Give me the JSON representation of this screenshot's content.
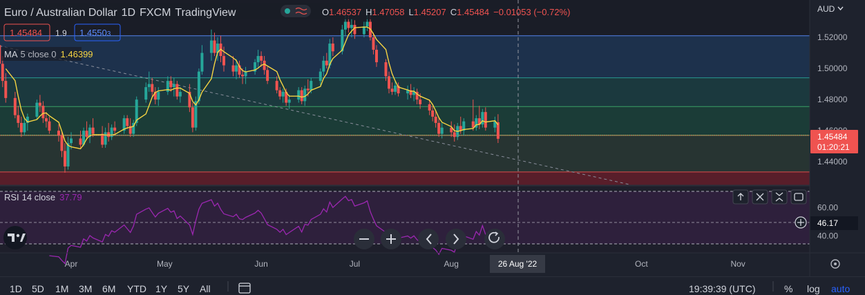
{
  "header": {
    "symbol": "Euro / Australian Dollar",
    "interval": "1D",
    "exchange": "FXCM",
    "brand": "TradingView",
    "ohlc": {
      "o_label": "O",
      "o": "1.46537",
      "h_label": "H",
      "h": "1.47058",
      "l_label": "L",
      "l": "1.45207",
      "c_label": "C",
      "c": "1.45484",
      "change": "−0.01053 (−0.72%)"
    },
    "sell_price": "1.45484",
    "spread": "1.9",
    "buy_price": "1.4550",
    "buy_price_small": "3"
  },
  "ma": {
    "label": "MA",
    "params": "5 close 0",
    "value": "1.46399",
    "color": "#f5d442"
  },
  "rsi": {
    "label": "RSI",
    "params": "14 close",
    "value": "37.79",
    "color": "#9b27b0",
    "crosshair_value": "46.17"
  },
  "price_axis": {
    "currency": "AUD",
    "ticks": [
      "1.52000",
      "1.50000",
      "1.48000",
      "1.46000",
      "1.44000"
    ],
    "last_price": "1.45484",
    "countdown": "01:20:21"
  },
  "rsi_axis": {
    "ticks": [
      "60.00",
      "40.00"
    ]
  },
  "time_axis": {
    "ticks": [
      "Apr",
      "May",
      "Jun",
      "Jul",
      "Aug",
      "Oct",
      "Nov"
    ],
    "crosshair_date": "26 Aug '22"
  },
  "toolbar": {
    "ranges": [
      "1D",
      "5D",
      "1M",
      "3M",
      "6M",
      "YTD",
      "1Y",
      "5Y",
      "All"
    ],
    "clock": "19:39:39 (UTC)",
    "percent": "%",
    "log": "log",
    "auto": "auto"
  },
  "colors": {
    "up": "#26a69a",
    "down": "#ef5350",
    "background": "#1e222d",
    "accent": "#2962ff"
  },
  "icons": {
    "chart_controls": [
      "minus-icon",
      "plus-icon",
      "chevron-left-icon",
      "chevron-right-icon",
      "reset-icon"
    ],
    "pane_controls": [
      "arrow-up-icon",
      "close-icon",
      "collapse-icon",
      "maximize-icon"
    ]
  },
  "chart_data": {
    "type": "candlestick",
    "ylim": [
      1.425,
      1.544
    ],
    "rsi_ylim": [
      28,
      75
    ],
    "horizontal_levels": [
      1.521,
      1.494,
      1.4755,
      1.457,
      1.4335
    ],
    "trendline": {
      "from": [
        "2022-03-09",
        1.5145
      ],
      "to": [
        "2022-09-27",
        1.4255
      ]
    },
    "candles": [
      {
        "date": "2022-03-07",
        "o": 1.503,
        "h": 1.518,
        "l": 1.498,
        "c": 1.508
      },
      {
        "date": "2022-03-08",
        "o": 1.508,
        "h": 1.52,
        "l": 1.501,
        "c": 1.515
      },
      {
        "date": "2022-03-09",
        "o": 1.515,
        "h": 1.523,
        "l": 1.5,
        "c": 1.503
      },
      {
        "date": "2022-03-10",
        "o": 1.503,
        "h": 1.508,
        "l": 1.488,
        "c": 1.492
      },
      {
        "date": "2022-03-11",
        "o": 1.492,
        "h": 1.497,
        "l": 1.478,
        "c": 1.481
      },
      {
        "date": "2022-03-14",
        "o": 1.481,
        "h": 1.485,
        "l": 1.468,
        "c": 1.47
      },
      {
        "date": "2022-03-15",
        "o": 1.47,
        "h": 1.476,
        "l": 1.462,
        "c": 1.465
      },
      {
        "date": "2022-03-16",
        "o": 1.465,
        "h": 1.469,
        "l": 1.456,
        "c": 1.459
      },
      {
        "date": "2022-03-17",
        "o": 1.459,
        "h": 1.468,
        "l": 1.457,
        "c": 1.465
      },
      {
        "date": "2022-03-18",
        "o": 1.465,
        "h": 1.471,
        "l": 1.46,
        "c": 1.469
      },
      {
        "date": "2022-03-21",
        "o": 1.469,
        "h": 1.48,
        "l": 1.467,
        "c": 1.478
      },
      {
        "date": "2022-03-22",
        "o": 1.478,
        "h": 1.483,
        "l": 1.472,
        "c": 1.476
      },
      {
        "date": "2022-03-23",
        "o": 1.476,
        "h": 1.479,
        "l": 1.465,
        "c": 1.468
      },
      {
        "date": "2022-03-24",
        "o": 1.468,
        "h": 1.472,
        "l": 1.462,
        "c": 1.466
      },
      {
        "date": "2022-03-25",
        "o": 1.466,
        "h": 1.469,
        "l": 1.458,
        "c": 1.46
      },
      {
        "date": "2022-03-28",
        "o": 1.46,
        "h": 1.464,
        "l": 1.453,
        "c": 1.457
      },
      {
        "date": "2022-03-29",
        "o": 1.457,
        "h": 1.46,
        "l": 1.443,
        "c": 1.447
      },
      {
        "date": "2022-03-30",
        "o": 1.447,
        "h": 1.452,
        "l": 1.433,
        "c": 1.437
      },
      {
        "date": "2022-03-31",
        "o": 1.437,
        "h": 1.456,
        "l": 1.435,
        "c": 1.452
      },
      {
        "date": "2022-04-01",
        "o": 1.452,
        "h": 1.459,
        "l": 1.448,
        "c": 1.455
      },
      {
        "date": "2022-04-04",
        "o": 1.455,
        "h": 1.46,
        "l": 1.449,
        "c": 1.451
      },
      {
        "date": "2022-04-05",
        "o": 1.451,
        "h": 1.462,
        "l": 1.45,
        "c": 1.46
      },
      {
        "date": "2022-04-06",
        "o": 1.46,
        "h": 1.466,
        "l": 1.454,
        "c": 1.456
      },
      {
        "date": "2022-04-07",
        "o": 1.456,
        "h": 1.464,
        "l": 1.452,
        "c": 1.462
      },
      {
        "date": "2022-04-08",
        "o": 1.462,
        "h": 1.468,
        "l": 1.456,
        "c": 1.458
      },
      {
        "date": "2022-04-11",
        "o": 1.458,
        "h": 1.463,
        "l": 1.449,
        "c": 1.451
      },
      {
        "date": "2022-04-12",
        "o": 1.451,
        "h": 1.462,
        "l": 1.449,
        "c": 1.459
      },
      {
        "date": "2022-04-13",
        "o": 1.459,
        "h": 1.465,
        "l": 1.453,
        "c": 1.456
      },
      {
        "date": "2022-04-14",
        "o": 1.456,
        "h": 1.464,
        "l": 1.454,
        "c": 1.462
      },
      {
        "date": "2022-04-15",
        "o": 1.462,
        "h": 1.466,
        "l": 1.458,
        "c": 1.46
      },
      {
        "date": "2022-04-18",
        "o": 1.46,
        "h": 1.47,
        "l": 1.458,
        "c": 1.468
      },
      {
        "date": "2022-04-19",
        "o": 1.468,
        "h": 1.47,
        "l": 1.461,
        "c": 1.463
      },
      {
        "date": "2022-04-20",
        "o": 1.463,
        "h": 1.468,
        "l": 1.456,
        "c": 1.458
      },
      {
        "date": "2022-04-21",
        "o": 1.458,
        "h": 1.467,
        "l": 1.456,
        "c": 1.465
      },
      {
        "date": "2022-04-22",
        "o": 1.465,
        "h": 1.482,
        "l": 1.463,
        "c": 1.48
      },
      {
        "date": "2022-04-25",
        "o": 1.48,
        "h": 1.491,
        "l": 1.478,
        "c": 1.488
      },
      {
        "date": "2022-04-26",
        "o": 1.488,
        "h": 1.498,
        "l": 1.485,
        "c": 1.49
      },
      {
        "date": "2022-04-27",
        "o": 1.49,
        "h": 1.494,
        "l": 1.482,
        "c": 1.485
      },
      {
        "date": "2022-04-28",
        "o": 1.485,
        "h": 1.488,
        "l": 1.477,
        "c": 1.48
      },
      {
        "date": "2022-04-29",
        "o": 1.48,
        "h": 1.488,
        "l": 1.476,
        "c": 1.485
      },
      {
        "date": "2022-05-02",
        "o": 1.485,
        "h": 1.495,
        "l": 1.483,
        "c": 1.492
      },
      {
        "date": "2022-05-03",
        "o": 1.492,
        "h": 1.495,
        "l": 1.485,
        "c": 1.488
      },
      {
        "date": "2022-05-04",
        "o": 1.488,
        "h": 1.494,
        "l": 1.482,
        "c": 1.49
      },
      {
        "date": "2022-05-05",
        "o": 1.49,
        "h": 1.492,
        "l": 1.48,
        "c": 1.482
      },
      {
        "date": "2022-05-06",
        "o": 1.482,
        "h": 1.488,
        "l": 1.478,
        "c": 1.485
      },
      {
        "date": "2022-05-09",
        "o": 1.485,
        "h": 1.49,
        "l": 1.472,
        "c": 1.475
      },
      {
        "date": "2022-05-10",
        "o": 1.475,
        "h": 1.478,
        "l": 1.459,
        "c": 1.462
      },
      {
        "date": "2022-05-11",
        "o": 1.462,
        "h": 1.482,
        "l": 1.46,
        "c": 1.479
      },
      {
        "date": "2022-05-12",
        "o": 1.479,
        "h": 1.5,
        "l": 1.477,
        "c": 1.498
      },
      {
        "date": "2022-05-13",
        "o": 1.498,
        "h": 1.515,
        "l": 1.496,
        "c": 1.51
      },
      {
        "date": "2022-05-16",
        "o": 1.51,
        "h": 1.525,
        "l": 1.505,
        "c": 1.518
      },
      {
        "date": "2022-05-17",
        "o": 1.518,
        "h": 1.523,
        "l": 1.508,
        "c": 1.51
      },
      {
        "date": "2022-05-18",
        "o": 1.51,
        "h": 1.52,
        "l": 1.505,
        "c": 1.516
      },
      {
        "date": "2022-05-19",
        "o": 1.516,
        "h": 1.521,
        "l": 1.504,
        "c": 1.508
      },
      {
        "date": "2022-05-20",
        "o": 1.508,
        "h": 1.514,
        "l": 1.498,
        "c": 1.502
      },
      {
        "date": "2022-05-23",
        "o": 1.502,
        "h": 1.508,
        "l": 1.495,
        "c": 1.498
      },
      {
        "date": "2022-05-24",
        "o": 1.498,
        "h": 1.506,
        "l": 1.493,
        "c": 1.502
      },
      {
        "date": "2022-05-25",
        "o": 1.502,
        "h": 1.505,
        "l": 1.494,
        "c": 1.496
      },
      {
        "date": "2022-05-26",
        "o": 1.496,
        "h": 1.5,
        "l": 1.49,
        "c": 1.495
      },
      {
        "date": "2022-05-27",
        "o": 1.495,
        "h": 1.501,
        "l": 1.49,
        "c": 1.498
      },
      {
        "date": "2022-05-30",
        "o": 1.498,
        "h": 1.506,
        "l": 1.496,
        "c": 1.504
      },
      {
        "date": "2022-05-31",
        "o": 1.504,
        "h": 1.512,
        "l": 1.5,
        "c": 1.508
      },
      {
        "date": "2022-06-01",
        "o": 1.508,
        "h": 1.511,
        "l": 1.501,
        "c": 1.505
      },
      {
        "date": "2022-06-02",
        "o": 1.505,
        "h": 1.508,
        "l": 1.496,
        "c": 1.499
      },
      {
        "date": "2022-06-03",
        "o": 1.499,
        "h": 1.501,
        "l": 1.49,
        "c": 1.492
      },
      {
        "date": "2022-06-06",
        "o": 1.492,
        "h": 1.495,
        "l": 1.484,
        "c": 1.486
      },
      {
        "date": "2022-06-07",
        "o": 1.486,
        "h": 1.488,
        "l": 1.48,
        "c": 1.482
      },
      {
        "date": "2022-06-08",
        "o": 1.482,
        "h": 1.487,
        "l": 1.478,
        "c": 1.485
      },
      {
        "date": "2022-06-09",
        "o": 1.485,
        "h": 1.487,
        "l": 1.476,
        "c": 1.478
      },
      {
        "date": "2022-06-10",
        "o": 1.478,
        "h": 1.483,
        "l": 1.474,
        "c": 1.48
      },
      {
        "date": "2022-06-13",
        "o": 1.48,
        "h": 1.488,
        "l": 1.478,
        "c": 1.486
      },
      {
        "date": "2022-06-14",
        "o": 1.486,
        "h": 1.488,
        "l": 1.477,
        "c": 1.479
      },
      {
        "date": "2022-06-15",
        "o": 1.479,
        "h": 1.489,
        "l": 1.476,
        "c": 1.487
      },
      {
        "date": "2022-06-16",
        "o": 1.487,
        "h": 1.493,
        "l": 1.482,
        "c": 1.486
      },
      {
        "date": "2022-06-17",
        "o": 1.486,
        "h": 1.494,
        "l": 1.484,
        "c": 1.492
      },
      {
        "date": "2022-06-20",
        "o": 1.492,
        "h": 1.5,
        "l": 1.489,
        "c": 1.498
      },
      {
        "date": "2022-06-21",
        "o": 1.498,
        "h": 1.508,
        "l": 1.495,
        "c": 1.505
      },
      {
        "date": "2022-06-22",
        "o": 1.505,
        "h": 1.51,
        "l": 1.5,
        "c": 1.502
      },
      {
        "date": "2022-06-23",
        "o": 1.502,
        "h": 1.519,
        "l": 1.5,
        "c": 1.516
      },
      {
        "date": "2022-06-24",
        "o": 1.516,
        "h": 1.52,
        "l": 1.508,
        "c": 1.511
      },
      {
        "date": "2022-06-27",
        "o": 1.511,
        "h": 1.528,
        "l": 1.509,
        "c": 1.525
      },
      {
        "date": "2022-06-28",
        "o": 1.525,
        "h": 1.536,
        "l": 1.521,
        "c": 1.53
      },
      {
        "date": "2022-06-29",
        "o": 1.53,
        "h": 1.534,
        "l": 1.523,
        "c": 1.526
      },
      {
        "date": "2022-06-30",
        "o": 1.526,
        "h": 1.532,
        "l": 1.52,
        "c": 1.528
      },
      {
        "date": "2022-07-01",
        "o": 1.528,
        "h": 1.531,
        "l": 1.519,
        "c": 1.522
      },
      {
        "date": "2022-07-04",
        "o": 1.522,
        "h": 1.53,
        "l": 1.52,
        "c": 1.527
      },
      {
        "date": "2022-07-05",
        "o": 1.527,
        "h": 1.538,
        "l": 1.524,
        "c": 1.53
      },
      {
        "date": "2022-07-06",
        "o": 1.53,
        "h": 1.535,
        "l": 1.518,
        "c": 1.52
      },
      {
        "date": "2022-07-07",
        "o": 1.52,
        "h": 1.523,
        "l": 1.509,
        "c": 1.512
      },
      {
        "date": "2022-07-08",
        "o": 1.512,
        "h": 1.515,
        "l": 1.501,
        "c": 1.504
      },
      {
        "date": "2022-07-11",
        "o": 1.504,
        "h": 1.506,
        "l": 1.492,
        "c": 1.495
      },
      {
        "date": "2022-07-12",
        "o": 1.495,
        "h": 1.498,
        "l": 1.484,
        "c": 1.487
      },
      {
        "date": "2022-07-13",
        "o": 1.487,
        "h": 1.491,
        "l": 1.483,
        "c": 1.485
      },
      {
        "date": "2022-07-14",
        "o": 1.485,
        "h": 1.492,
        "l": 1.483,
        "c": 1.489
      },
      {
        "date": "2022-07-15",
        "o": 1.489,
        "h": 1.491,
        "l": 1.482,
        "c": 1.484
      },
      {
        "date": "2022-07-18",
        "o": 1.484,
        "h": 1.489,
        "l": 1.48,
        "c": 1.486
      },
      {
        "date": "2022-07-19",
        "o": 1.486,
        "h": 1.49,
        "l": 1.481,
        "c": 1.483
      },
      {
        "date": "2022-07-20",
        "o": 1.483,
        "h": 1.488,
        "l": 1.479,
        "c": 1.485
      },
      {
        "date": "2022-07-21",
        "o": 1.485,
        "h": 1.487,
        "l": 1.477,
        "c": 1.48
      },
      {
        "date": "2022-07-22",
        "o": 1.48,
        "h": 1.484,
        "l": 1.474,
        "c": 1.477
      },
      {
        "date": "2022-07-25",
        "o": 1.477,
        "h": 1.48,
        "l": 1.47,
        "c": 1.473
      },
      {
        "date": "2022-07-26",
        "o": 1.473,
        "h": 1.476,
        "l": 1.466,
        "c": 1.469
      },
      {
        "date": "2022-07-27",
        "o": 1.469,
        "h": 1.473,
        "l": 1.462,
        "c": 1.465
      },
      {
        "date": "2022-07-28",
        "o": 1.465,
        "h": 1.468,
        "l": 1.456,
        "c": 1.458
      },
      {
        "date": "2022-07-29",
        "o": 1.458,
        "h": 1.465,
        "l": 1.455,
        "c": 1.462
      },
      {
        "date": "2022-08-01",
        "o": 1.462,
        "h": 1.466,
        "l": 1.456,
        "c": 1.459
      },
      {
        "date": "2022-08-02",
        "o": 1.459,
        "h": 1.464,
        "l": 1.453,
        "c": 1.456
      },
      {
        "date": "2022-08-03",
        "o": 1.456,
        "h": 1.465,
        "l": 1.454,
        "c": 1.463
      },
      {
        "date": "2022-08-04",
        "o": 1.463,
        "h": 1.469,
        "l": 1.458,
        "c": 1.46
      },
      {
        "date": "2022-08-05",
        "o": 1.46,
        "h": 1.468,
        "l": 1.457,
        "c": 1.466
      },
      {
        "date": "2022-08-08",
        "o": 1.466,
        "h": 1.48,
        "l": 1.46,
        "c": 1.462
      },
      {
        "date": "2022-08-09",
        "o": 1.462,
        "h": 1.47,
        "l": 1.46,
        "c": 1.468
      },
      {
        "date": "2022-08-10",
        "o": 1.468,
        "h": 1.476,
        "l": 1.461,
        "c": 1.464
      },
      {
        "date": "2022-08-11",
        "o": 1.464,
        "h": 1.474,
        "l": 1.462,
        "c": 1.472
      },
      {
        "date": "2022-08-12",
        "o": 1.472,
        "h": 1.475,
        "l": 1.46,
        "c": 1.462
      },
      {
        "date": "2022-08-15",
        "o": 1.462,
        "h": 1.469,
        "l": 1.459,
        "c": 1.466
      },
      {
        "date": "2022-08-16",
        "o": 1.4654,
        "h": 1.4706,
        "l": 1.4521,
        "c": 1.4548
      }
    ]
  }
}
